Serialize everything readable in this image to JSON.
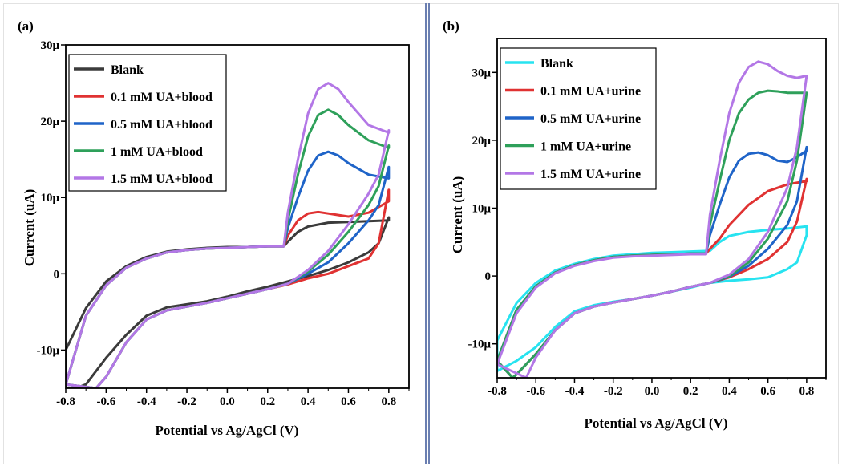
{
  "colors": {
    "blank_a": "#3b3b3b",
    "blank_b": "#27e3f0",
    "red": "#e03232",
    "blue": "#1f64c8",
    "green": "#2ea05a",
    "purple": "#b377e6",
    "divider": "#6b7fb1"
  },
  "chart_data": [
    {
      "type": "line",
      "panel_label": "(a)",
      "xlabel": "Potential vs Ag/AgCl (V)",
      "ylabel": "Current (uA)",
      "xlim": [
        -0.8,
        0.9
      ],
      "ylim": [
        -15,
        30
      ],
      "x_ticks": [
        "-0.8",
        "-0.6",
        "-0.4",
        "-0.2",
        "0.0",
        "0.2",
        "0.4",
        "0.6",
        "0.8"
      ],
      "x_tick_values": [
        -0.8,
        -0.6,
        -0.4,
        -0.2,
        0.0,
        0.2,
        0.4,
        0.6,
        0.8
      ],
      "y_ticks": [
        "-10μ",
        "0",
        "10μ",
        "20μ",
        "30μ"
      ],
      "y_tick_values": [
        -10,
        0,
        10,
        20,
        30
      ],
      "legend_position": "top-left",
      "series": [
        {
          "name": "Blank",
          "color": "#3b3b3b",
          "x": [
            -0.8,
            -0.7,
            -0.6,
            -0.5,
            -0.4,
            -0.3,
            -0.2,
            -0.1,
            0.0,
            0.1,
            0.2,
            0.28,
            0.3,
            0.35,
            0.4,
            0.5,
            0.6,
            0.7,
            0.8,
            0.8,
            0.75,
            0.7,
            0.6,
            0.5,
            0.4,
            0.3,
            0.2,
            0.1,
            0.0,
            -0.1,
            -0.2,
            -0.3,
            -0.4,
            -0.5,
            -0.6,
            -0.7,
            -0.75,
            -0.8
          ],
          "y": [
            -10.0,
            -4.5,
            -1.0,
            1.0,
            2.2,
            2.9,
            3.2,
            3.4,
            3.5,
            3.5,
            3.6,
            3.6,
            4.2,
            5.5,
            6.2,
            6.7,
            6.8,
            6.9,
            7.0,
            7.4,
            4.0,
            2.8,
            1.5,
            0.5,
            -0.3,
            -1.0,
            -1.7,
            -2.3,
            -3.0,
            -3.6,
            -4.0,
            -4.4,
            -5.5,
            -8.0,
            -11.0,
            -14.5,
            -15,
            -15
          ]
        },
        {
          "name": "0.1 mM UA+blood",
          "color": "#e03232",
          "x": [
            -0.8,
            -0.7,
            -0.6,
            -0.5,
            -0.4,
            -0.3,
            -0.2,
            -0.1,
            0.0,
            0.1,
            0.2,
            0.28,
            0.3,
            0.35,
            0.4,
            0.45,
            0.5,
            0.55,
            0.6,
            0.7,
            0.8,
            0.8,
            0.75,
            0.7,
            0.6,
            0.5,
            0.4,
            0.3,
            0.2,
            0.1,
            0.0,
            -0.1,
            -0.2,
            -0.3,
            -0.4,
            -0.5,
            -0.6,
            -0.65
          ],
          "y": [
            -14.5,
            -5.5,
            -1.5,
            0.8,
            2.0,
            2.8,
            3.1,
            3.3,
            3.4,
            3.5,
            3.6,
            3.6,
            5.0,
            7.0,
            7.9,
            8.1,
            7.9,
            7.7,
            7.5,
            8.0,
            9.5,
            11.0,
            4.0,
            2.0,
            1.0,
            0.0,
            -0.6,
            -1.4,
            -2.0,
            -2.6,
            -3.2,
            -3.8,
            -4.3,
            -4.8,
            -6.0,
            -9.0,
            -13.5,
            -15
          ]
        },
        {
          "name": "0.5 mM UA+blood",
          "color": "#1f64c8",
          "x": [
            -0.8,
            -0.7,
            -0.6,
            -0.5,
            -0.4,
            -0.3,
            -0.2,
            -0.1,
            0.0,
            0.1,
            0.2,
            0.28,
            0.3,
            0.35,
            0.4,
            0.45,
            0.5,
            0.55,
            0.6,
            0.7,
            0.8,
            0.8,
            0.75,
            0.7,
            0.6,
            0.5,
            0.4,
            0.3,
            0.2,
            0.1,
            0.0,
            -0.1,
            -0.2,
            -0.3,
            -0.4,
            -0.5,
            -0.6,
            -0.65
          ],
          "y": [
            -14.5,
            -5.5,
            -1.5,
            0.8,
            2.0,
            2.8,
            3.1,
            3.3,
            3.4,
            3.5,
            3.6,
            3.6,
            6.0,
            10.0,
            13.5,
            15.5,
            16.0,
            15.5,
            14.5,
            13.0,
            12.5,
            14.0,
            9.0,
            7.0,
            4.0,
            1.5,
            0.0,
            -1.3,
            -2.0,
            -2.6,
            -3.2,
            -3.8,
            -4.3,
            -4.8,
            -6.0,
            -9.0,
            -13.5,
            -15
          ]
        },
        {
          "name": "1 mM UA+blood",
          "color": "#2ea05a",
          "x": [
            -0.8,
            -0.7,
            -0.6,
            -0.5,
            -0.4,
            -0.3,
            -0.2,
            -0.1,
            0.0,
            0.1,
            0.2,
            0.28,
            0.3,
            0.35,
            0.4,
            0.45,
            0.5,
            0.55,
            0.6,
            0.7,
            0.8,
            0.8,
            0.75,
            0.7,
            0.6,
            0.5,
            0.4,
            0.3,
            0.2,
            0.1,
            0.0,
            -0.1,
            -0.2,
            -0.3,
            -0.4,
            -0.5,
            -0.6,
            -0.65
          ],
          "y": [
            -14.5,
            -5.5,
            -1.5,
            0.8,
            2.0,
            2.8,
            3.1,
            3.3,
            3.4,
            3.5,
            3.6,
            3.6,
            7.0,
            13.0,
            18.0,
            20.8,
            21.5,
            20.8,
            19.5,
            17.5,
            16.5,
            16.8,
            11.5,
            9.0,
            5.5,
            2.5,
            0.3,
            -1.3,
            -2.0,
            -2.6,
            -3.2,
            -3.8,
            -4.3,
            -4.8,
            -6.0,
            -9.0,
            -13.5,
            -15
          ]
        },
        {
          "name": "1.5 mM UA+blood",
          "color": "#b377e6",
          "x": [
            -0.8,
            -0.7,
            -0.6,
            -0.5,
            -0.4,
            -0.3,
            -0.2,
            -0.1,
            0.0,
            0.1,
            0.2,
            0.28,
            0.3,
            0.35,
            0.4,
            0.45,
            0.5,
            0.55,
            0.6,
            0.7,
            0.8,
            0.8,
            0.75,
            0.7,
            0.6,
            0.5,
            0.4,
            0.3,
            0.2,
            0.1,
            0.0,
            -0.1,
            -0.2,
            -0.3,
            -0.4,
            -0.5,
            -0.6,
            -0.65
          ],
          "y": [
            -14.5,
            -5.5,
            -1.5,
            0.8,
            2.0,
            2.8,
            3.1,
            3.3,
            3.4,
            3.5,
            3.6,
            3.6,
            8.0,
            15.0,
            21.0,
            24.2,
            25.0,
            24.2,
            22.5,
            19.5,
            18.5,
            18.8,
            13.0,
            10.5,
            6.5,
            3.0,
            0.5,
            -1.3,
            -2.0,
            -2.6,
            -3.2,
            -3.8,
            -4.3,
            -4.8,
            -6.0,
            -9.0,
            -13.5,
            -15
          ]
        }
      ]
    },
    {
      "type": "line",
      "panel_label": "(b)",
      "xlabel": "Potential vs Ag/AgCl (V)",
      "ylabel": "Current (uA)",
      "xlim": [
        -0.8,
        0.9
      ],
      "ylim": [
        -15,
        35
      ],
      "x_ticks": [
        "-0.8",
        "-0.6",
        "-0.4",
        "-0.2",
        "0.0",
        "0.2",
        "0.4",
        "0.6",
        "0.8"
      ],
      "x_tick_values": [
        -0.8,
        -0.6,
        -0.4,
        -0.2,
        0.0,
        0.2,
        0.4,
        0.6,
        0.8
      ],
      "y_ticks": [
        "-10μ",
        "0",
        "10μ",
        "20μ",
        "30μ"
      ],
      "y_tick_values": [
        -10,
        0,
        10,
        20,
        30
      ],
      "legend_position": "top-left",
      "series": [
        {
          "name": "Blank",
          "color": "#27e3f0",
          "x": [
            -0.8,
            -0.7,
            -0.6,
            -0.5,
            -0.4,
            -0.3,
            -0.2,
            -0.1,
            0.0,
            0.1,
            0.2,
            0.3,
            0.35,
            0.4,
            0.5,
            0.6,
            0.7,
            0.8,
            0.8,
            0.75,
            0.7,
            0.6,
            0.5,
            0.4,
            0.3,
            0.2,
            0.1,
            0.0,
            -0.1,
            -0.2,
            -0.3,
            -0.4,
            -0.5,
            -0.6,
            -0.7,
            -0.8
          ],
          "y": [
            -9.5,
            -4.0,
            -1.0,
            0.8,
            1.8,
            2.5,
            3.0,
            3.2,
            3.4,
            3.5,
            3.6,
            3.7,
            5.0,
            5.9,
            6.5,
            6.8,
            7.0,
            7.3,
            6.0,
            2.0,
            1.0,
            -0.2,
            -0.5,
            -0.7,
            -1.0,
            -1.7,
            -2.3,
            -2.9,
            -3.4,
            -3.8,
            -4.3,
            -5.2,
            -7.5,
            -10.5,
            -12.5,
            -14
          ]
        },
        {
          "name": "0.1 mM UA+urine",
          "color": "#e03232",
          "x": [
            -0.8,
            -0.7,
            -0.6,
            -0.5,
            -0.4,
            -0.3,
            -0.2,
            -0.1,
            0.0,
            0.1,
            0.2,
            0.28,
            0.3,
            0.35,
            0.4,
            0.5,
            0.6,
            0.7,
            0.8,
            0.8,
            0.75,
            0.7,
            0.6,
            0.5,
            0.4,
            0.3,
            0.2,
            0.1,
            0.0,
            -0.1,
            -0.2,
            -0.3,
            -0.4,
            -0.5,
            -0.6,
            -0.7,
            -0.72
          ],
          "y": [
            -12.5,
            -5.0,
            -1.5,
            0.5,
            1.6,
            2.3,
            2.8,
            3.0,
            3.1,
            3.2,
            3.3,
            3.3,
            4.0,
            5.5,
            7.5,
            10.5,
            12.5,
            13.5,
            14.0,
            14.3,
            8.0,
            5.0,
            2.5,
            1.0,
            -0.2,
            -1.0,
            -1.6,
            -2.3,
            -2.9,
            -3.4,
            -3.9,
            -4.5,
            -5.5,
            -8.0,
            -11.5,
            -14.5,
            -15
          ]
        },
        {
          "name": "0.5 mM UA+urine",
          "color": "#1f64c8",
          "x": [
            -0.8,
            -0.7,
            -0.6,
            -0.5,
            -0.4,
            -0.3,
            -0.2,
            -0.1,
            0.0,
            0.1,
            0.2,
            0.28,
            0.3,
            0.35,
            0.4,
            0.45,
            0.5,
            0.55,
            0.6,
            0.65,
            0.7,
            0.75,
            0.8,
            0.8,
            0.75,
            0.7,
            0.6,
            0.5,
            0.4,
            0.3,
            0.2,
            0.1,
            0.0,
            -0.1,
            -0.2,
            -0.3,
            -0.4,
            -0.5,
            -0.6,
            -0.7,
            -0.72
          ],
          "y": [
            -12.5,
            -5.0,
            -1.5,
            0.5,
            1.6,
            2.3,
            2.8,
            3.0,
            3.1,
            3.2,
            3.3,
            3.3,
            6.0,
            10.5,
            14.5,
            17.0,
            18.0,
            18.2,
            17.8,
            17.0,
            16.8,
            17.5,
            18.5,
            19.0,
            11.0,
            7.5,
            4.0,
            1.5,
            -0.1,
            -1.0,
            -1.6,
            -2.3,
            -2.9,
            -3.4,
            -3.9,
            -4.5,
            -5.5,
            -8.0,
            -11.5,
            -14.5,
            -15
          ]
        },
        {
          "name": "1 mM UA+urine",
          "color": "#2ea05a",
          "x": [
            -0.8,
            -0.7,
            -0.6,
            -0.5,
            -0.4,
            -0.3,
            -0.2,
            -0.1,
            0.0,
            0.1,
            0.2,
            0.28,
            0.3,
            0.35,
            0.4,
            0.45,
            0.5,
            0.55,
            0.6,
            0.65,
            0.7,
            0.75,
            0.8,
            0.8,
            0.75,
            0.7,
            0.6,
            0.5,
            0.4,
            0.3,
            0.2,
            0.1,
            0.0,
            -0.1,
            -0.2,
            -0.3,
            -0.4,
            -0.5,
            -0.6,
            -0.7,
            -0.72
          ],
          "y": [
            -12.5,
            -5.0,
            -1.5,
            0.5,
            1.6,
            2.3,
            2.8,
            3.0,
            3.1,
            3.2,
            3.3,
            3.3,
            7.5,
            14.0,
            20.0,
            24.0,
            26.0,
            27.0,
            27.3,
            27.2,
            27.0,
            27.0,
            27.0,
            27.0,
            17.0,
            11.0,
            5.5,
            2.0,
            0.0,
            -1.0,
            -1.6,
            -2.3,
            -2.9,
            -3.4,
            -3.9,
            -4.5,
            -5.5,
            -8.0,
            -11.5,
            -14.5,
            -15
          ]
        },
        {
          "name": "1.5 mM UA+urine",
          "color": "#b377e6",
          "x": [
            -0.8,
            -0.7,
            -0.6,
            -0.5,
            -0.4,
            -0.3,
            -0.2,
            -0.1,
            0.0,
            0.1,
            0.2,
            0.28,
            0.3,
            0.35,
            0.4,
            0.45,
            0.5,
            0.55,
            0.6,
            0.65,
            0.7,
            0.75,
            0.8,
            0.8,
            0.75,
            0.7,
            0.6,
            0.5,
            0.4,
            0.3,
            0.2,
            0.1,
            0.0,
            -0.1,
            -0.2,
            -0.3,
            -0.4,
            -0.5,
            -0.6,
            -0.65
          ],
          "y": [
            -13.0,
            -5.5,
            -1.7,
            0.4,
            1.5,
            2.2,
            2.7,
            2.9,
            3.0,
            3.1,
            3.2,
            3.2,
            9.0,
            17.0,
            24.0,
            28.5,
            30.8,
            31.6,
            31.2,
            30.2,
            29.5,
            29.2,
            29.5,
            29.5,
            19.0,
            13.0,
            6.5,
            2.5,
            0.2,
            -1.0,
            -1.6,
            -2.3,
            -2.9,
            -3.4,
            -3.9,
            -4.5,
            -5.5,
            -8.0,
            -12.0,
            -15
          ]
        }
      ]
    }
  ]
}
